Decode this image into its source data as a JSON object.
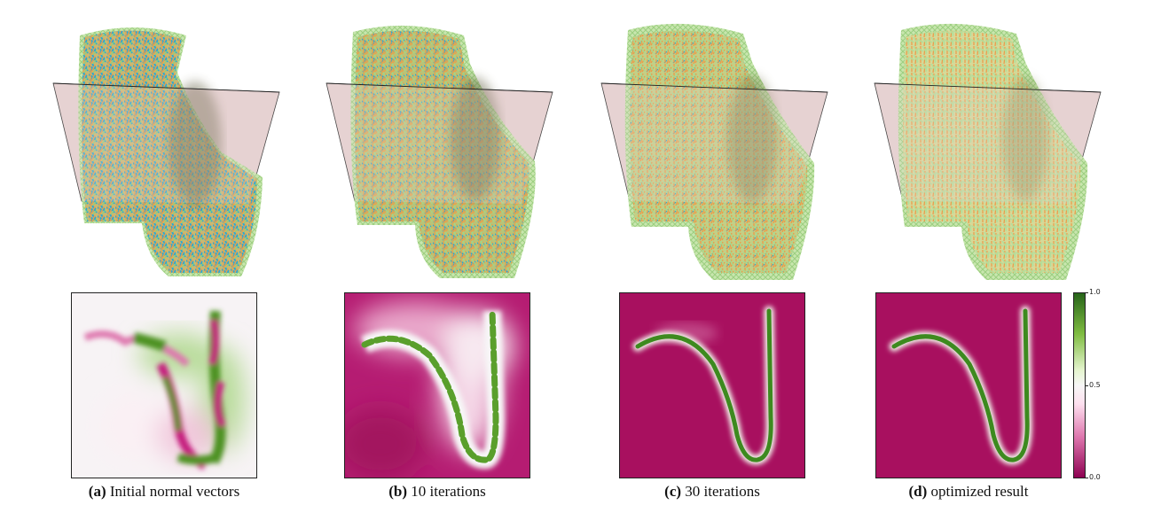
{
  "panels": [
    {
      "label": "(a)",
      "caption": "Initial normal vectors"
    },
    {
      "label": "(b)",
      "caption": "10 iterations"
    },
    {
      "label": "(c)",
      "caption": "30 iterations"
    },
    {
      "label": "(d)",
      "caption": "optimized result"
    }
  ],
  "colorbar": {
    "ticks": [
      "1.0",
      "0.5",
      "0.0"
    ],
    "colors": {
      "high": "#276419",
      "mid": "#f7f7f7",
      "low": "#8e0152"
    }
  }
}
